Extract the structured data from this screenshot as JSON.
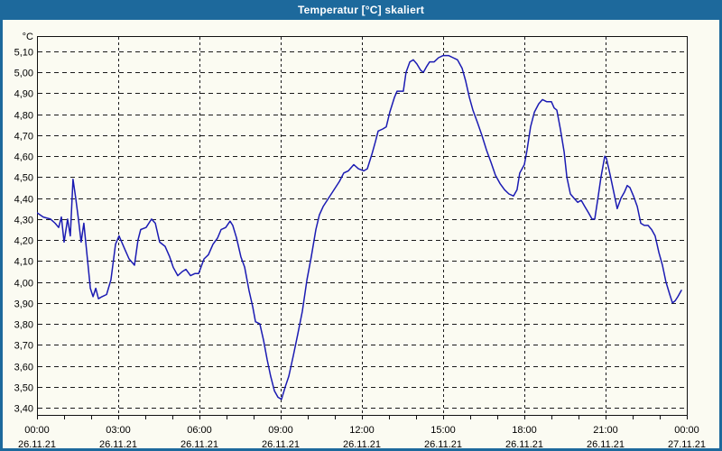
{
  "window": {
    "title": "Temperatur [°C] skaliert"
  },
  "colors": {
    "titlebar": "#1d699c",
    "frame": "#1d699c",
    "background": "#fbfbf2",
    "plot_border": "#111111",
    "grid": "#1a1a1a",
    "line": "#1b1bb3",
    "text": "#000000",
    "title_text": "#ffffff"
  },
  "chart_data": {
    "type": "line",
    "title": "Temperatur [°C] skaliert",
    "unit_label": "°C",
    "xlabel": "",
    "ylabel": "°C",
    "ylim": [
      3.4,
      5.1
    ],
    "y_step": 0.1,
    "grid": "dashed",
    "legend_position": "none",
    "y_tick_labels": [
      "5,10",
      "5,00",
      "4,90",
      "4,80",
      "4,70",
      "4,60",
      "4,50",
      "4,40",
      "4,30",
      "4,20",
      "4,10",
      "4,00",
      "3,90",
      "3,80",
      "3,70",
      "3,60",
      "3,50",
      "3,40"
    ],
    "y_tick_values": [
      5.1,
      5.0,
      4.9,
      4.8,
      4.7,
      4.6,
      4.5,
      4.4,
      4.3,
      4.2,
      4.1,
      4.0,
      3.9,
      3.8,
      3.7,
      3.6,
      3.5,
      3.4
    ],
    "x_range_hours": [
      0,
      24
    ],
    "x_minor_tick_every_hours": 1,
    "x_major_ticks": [
      {
        "h": 0,
        "time": "00:00",
        "date": "26.11.21"
      },
      {
        "h": 3,
        "time": "03:00",
        "date": "26.11.21"
      },
      {
        "h": 6,
        "time": "06:00",
        "date": "26.11.21"
      },
      {
        "h": 9,
        "time": "09:00",
        "date": "26.11.21"
      },
      {
        "h": 12,
        "time": "12:00",
        "date": "26.11.21"
      },
      {
        "h": 15,
        "time": "15:00",
        "date": "26.11.21"
      },
      {
        "h": 18,
        "time": "18:00",
        "date": "26.11.21"
      },
      {
        "h": 21,
        "time": "21:00",
        "date": "26.11.21"
      },
      {
        "h": 24,
        "time": "00:00",
        "date": "27.11.21"
      }
    ],
    "series": [
      {
        "name": "Temperatur",
        "color": "#1b1bb3",
        "points": [
          [
            0,
            4.33
          ],
          [
            0.23,
            4.31
          ],
          [
            0.5,
            4.3
          ],
          [
            0.67,
            4.28
          ],
          [
            0.8,
            4.26
          ],
          [
            0.9,
            4.31
          ],
          [
            1,
            4.19
          ],
          [
            1.13,
            4.3
          ],
          [
            1.23,
            4.22
          ],
          [
            1.33,
            4.49
          ],
          [
            1.43,
            4.4
          ],
          [
            1.53,
            4.3
          ],
          [
            1.63,
            4.19
          ],
          [
            1.73,
            4.28
          ],
          [
            1.87,
            4.1
          ],
          [
            1.97,
            3.97
          ],
          [
            2.07,
            3.93
          ],
          [
            2.17,
            3.97
          ],
          [
            2.27,
            3.92
          ],
          [
            2.4,
            3.93
          ],
          [
            2.57,
            3.94
          ],
          [
            2.73,
            4.01
          ],
          [
            2.9,
            4.18
          ],
          [
            3.03,
            4.22
          ],
          [
            3.23,
            4.16
          ],
          [
            3.4,
            4.11
          ],
          [
            3.6,
            4.08
          ],
          [
            3.73,
            4.2
          ],
          [
            3.83,
            4.25
          ],
          [
            4.03,
            4.26
          ],
          [
            4.23,
            4.3
          ],
          [
            4.37,
            4.28
          ],
          [
            4.53,
            4.19
          ],
          [
            4.73,
            4.17
          ],
          [
            4.9,
            4.12
          ],
          [
            5.03,
            4.07
          ],
          [
            5.2,
            4.03
          ],
          [
            5.37,
            4.05
          ],
          [
            5.5,
            4.06
          ],
          [
            5.67,
            4.03
          ],
          [
            5.83,
            4.04
          ],
          [
            5.97,
            4.04
          ],
          [
            6.17,
            4.11
          ],
          [
            6.33,
            4.13
          ],
          [
            6.5,
            4.18
          ],
          [
            6.67,
            4.21
          ],
          [
            6.8,
            4.25
          ],
          [
            6.97,
            4.26
          ],
          [
            7.13,
            4.29
          ],
          [
            7.23,
            4.27
          ],
          [
            7.37,
            4.21
          ],
          [
            7.53,
            4.12
          ],
          [
            7.67,
            4.07
          ],
          [
            7.83,
            3.96
          ],
          [
            7.97,
            3.88
          ],
          [
            8.07,
            3.81
          ],
          [
            8.23,
            3.8
          ],
          [
            8.37,
            3.72
          ],
          [
            8.5,
            3.63
          ],
          [
            8.63,
            3.55
          ],
          [
            8.77,
            3.48
          ],
          [
            8.9,
            3.45
          ],
          [
            9.03,
            3.44
          ],
          [
            9.17,
            3.5
          ],
          [
            9.3,
            3.55
          ],
          [
            9.47,
            3.65
          ],
          [
            9.63,
            3.75
          ],
          [
            9.8,
            3.86
          ],
          [
            9.97,
            4.01
          ],
          [
            10.13,
            4.12
          ],
          [
            10.3,
            4.25
          ],
          [
            10.43,
            4.32
          ],
          [
            10.57,
            4.36
          ],
          [
            10.77,
            4.4
          ],
          [
            10.97,
            4.44
          ],
          [
            11.17,
            4.48
          ],
          [
            11.33,
            4.52
          ],
          [
            11.5,
            4.53
          ],
          [
            11.7,
            4.56
          ],
          [
            11.87,
            4.54
          ],
          [
            12.07,
            4.53
          ],
          [
            12.2,
            4.54
          ],
          [
            12.37,
            4.61
          ],
          [
            12.5,
            4.67
          ],
          [
            12.6,
            4.72
          ],
          [
            12.77,
            4.73
          ],
          [
            12.9,
            4.74
          ],
          [
            13.03,
            4.81
          ],
          [
            13.2,
            4.88
          ],
          [
            13.3,
            4.91
          ],
          [
            13.53,
            4.91
          ],
          [
            13.63,
            5.0
          ],
          [
            13.77,
            5.05
          ],
          [
            13.9,
            5.06
          ],
          [
            14.03,
            5.04
          ],
          [
            14.17,
            5.01
          ],
          [
            14.27,
            5.0
          ],
          [
            14.4,
            5.03
          ],
          [
            14.5,
            5.05
          ],
          [
            14.67,
            5.05
          ],
          [
            14.83,
            5.07
          ],
          [
            15,
            5.08
          ],
          [
            15.2,
            5.08
          ],
          [
            15.37,
            5.07
          ],
          [
            15.53,
            5.06
          ],
          [
            15.7,
            5.02
          ],
          [
            15.83,
            4.96
          ],
          [
            15.97,
            4.88
          ],
          [
            16.1,
            4.82
          ],
          [
            16.27,
            4.76
          ],
          [
            16.43,
            4.7
          ],
          [
            16.6,
            4.63
          ],
          [
            16.77,
            4.57
          ],
          [
            16.93,
            4.51
          ],
          [
            17.1,
            4.47
          ],
          [
            17.27,
            4.44
          ],
          [
            17.43,
            4.42
          ],
          [
            17.6,
            4.41
          ],
          [
            17.73,
            4.44
          ],
          [
            17.83,
            4.52
          ],
          [
            18,
            4.56
          ],
          [
            18.1,
            4.63
          ],
          [
            18.23,
            4.74
          ],
          [
            18.37,
            4.81
          ],
          [
            18.53,
            4.85
          ],
          [
            18.67,
            4.87
          ],
          [
            18.83,
            4.86
          ],
          [
            19,
            4.86
          ],
          [
            19.1,
            4.83
          ],
          [
            19.2,
            4.82
          ],
          [
            19.33,
            4.73
          ],
          [
            19.47,
            4.62
          ],
          [
            19.57,
            4.5
          ],
          [
            19.7,
            4.42
          ],
          [
            19.83,
            4.4
          ],
          [
            19.97,
            4.38
          ],
          [
            20.1,
            4.39
          ],
          [
            20.23,
            4.36
          ],
          [
            20.37,
            4.33
          ],
          [
            20.5,
            4.3
          ],
          [
            20.6,
            4.3
          ],
          [
            20.73,
            4.41
          ],
          [
            20.83,
            4.5
          ],
          [
            20.97,
            4.6
          ],
          [
            21.03,
            4.59
          ],
          [
            21.17,
            4.51
          ],
          [
            21.3,
            4.43
          ],
          [
            21.43,
            4.35
          ],
          [
            21.57,
            4.4
          ],
          [
            21.7,
            4.43
          ],
          [
            21.8,
            4.46
          ],
          [
            21.9,
            4.45
          ],
          [
            22.03,
            4.41
          ],
          [
            22.17,
            4.36
          ],
          [
            22.3,
            4.28
          ],
          [
            22.43,
            4.27
          ],
          [
            22.57,
            4.27
          ],
          [
            22.7,
            4.25
          ],
          [
            22.83,
            4.22
          ],
          [
            22.97,
            4.14
          ],
          [
            23.1,
            4.08
          ],
          [
            23.23,
            4.0
          ],
          [
            23.37,
            3.94
          ],
          [
            23.47,
            3.9
          ],
          [
            23.57,
            3.91
          ],
          [
            23.67,
            3.93
          ],
          [
            23.8,
            3.96
          ]
        ]
      }
    ]
  }
}
